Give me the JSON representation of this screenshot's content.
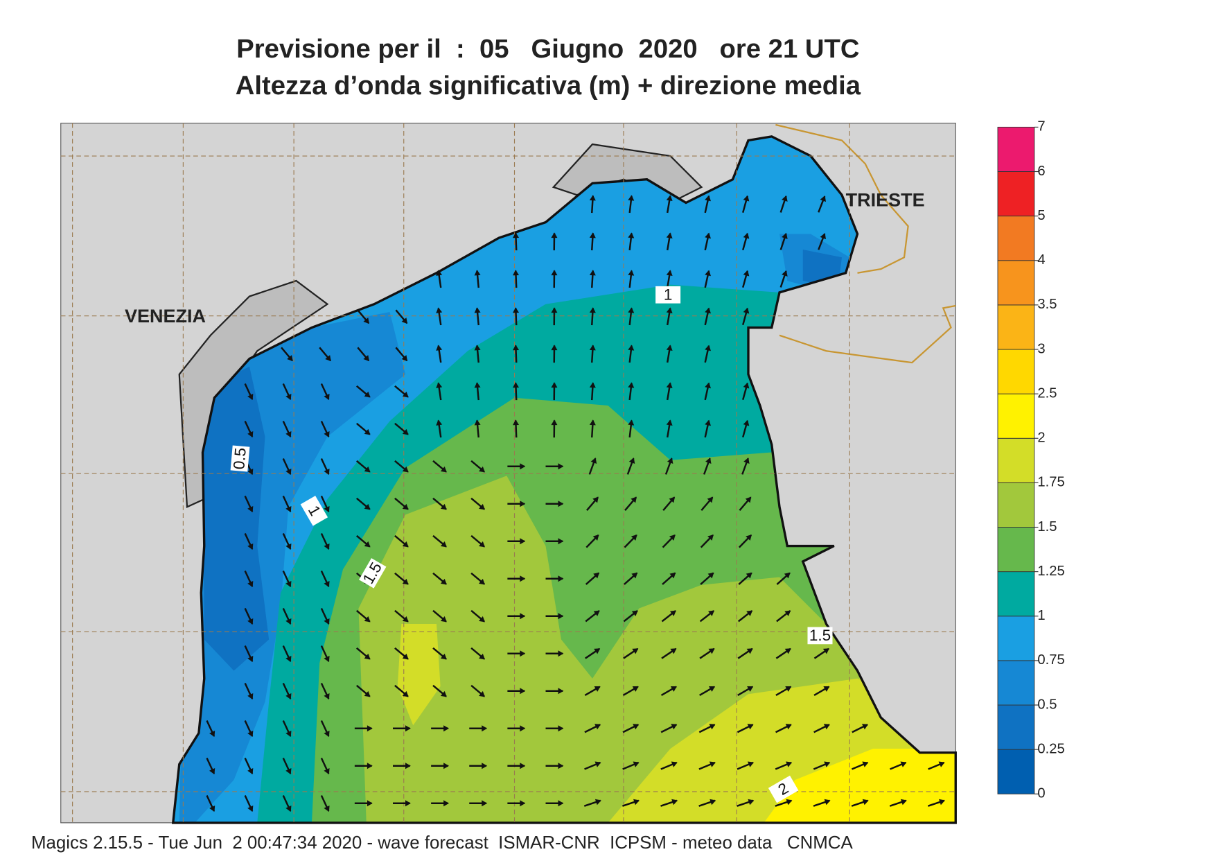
{
  "header": {
    "title": "Previsione per il  :  05   Giugno  2020   ore 21 UTC",
    "subtitle": "Altezza d’onda significativa (m) + direzione media"
  },
  "map": {
    "places": [
      "VENEZIA",
      "TRIESTE"
    ],
    "contour_labels": [
      1,
      0.5,
      1,
      1.5,
      1.5,
      2
    ]
  },
  "legend": {
    "levels": [
      0,
      0.25,
      0.5,
      0.75,
      1,
      1.25,
      1.5,
      1.75,
      2,
      2.5,
      3,
      3.5,
      4,
      5,
      6,
      7
    ],
    "colors": [
      "#005fb0",
      "#0f72c2",
      "#1688d4",
      "#1a9fe2",
      "#00aaa0",
      "#66b84c",
      "#a2c83c",
      "#d3dd28",
      "#fff200",
      "#ffd800",
      "#fbb416",
      "#f7941d",
      "#f27a22",
      "#ee2124",
      "#ec1a6e"
    ]
  },
  "footer": "Magics 2.15.5 - Tue Jun  2 00:47:34 2020 - wave forecast  ISMAR-CNR  ICPSM - meteo data   CNMCA"
}
